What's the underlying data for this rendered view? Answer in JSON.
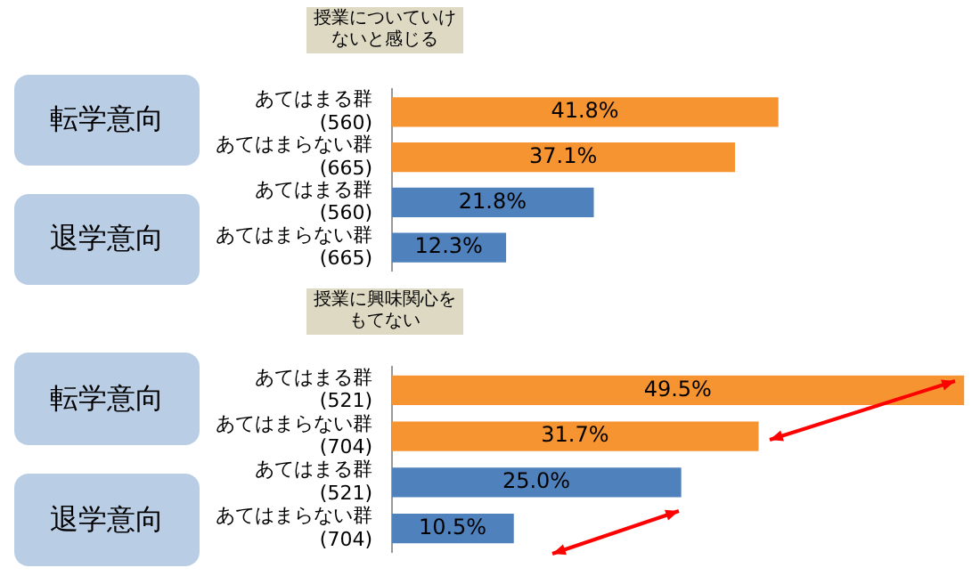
{
  "chart_data": [
    {
      "type": "bar",
      "orientation": "horizontal",
      "title": "授業についていけないと感じる",
      "categories": [
        "あてはまる群\n(560)",
        "あてはまらない群\n(665)",
        "あてはまる群\n(560)",
        "あてはまらない群\n(665)"
      ],
      "values": [
        41.8,
        37.1,
        21.8,
        12.3
      ],
      "colors": [
        "#f79432",
        "#f79432",
        "#4f81bd",
        "#4f81bd"
      ],
      "value_labels": [
        "41.8%",
        "37.1%",
        "21.8%",
        "12.3%"
      ],
      "annotations": [
        "転学意向",
        "退学意向"
      ],
      "legend": false,
      "tick_labels": "y"
    },
    {
      "type": "bar",
      "orientation": "horizontal",
      "title": "授業に興味関心をもてない",
      "categories": [
        "あてはまる群\n(521)",
        "あてはまらない群\n(704)",
        "あてはまる群\n(521)",
        "あてはまらない群\n(704)"
      ],
      "values": [
        49.5,
        31.7,
        25.0,
        10.5
      ],
      "colors": [
        "#f79432",
        "#f79432",
        "#4f81bd",
        "#4f81bd"
      ],
      "value_labels": [
        "49.5%",
        "31.7%",
        "25.0%",
        "10.5%"
      ],
      "annotations": [
        "転学意向",
        "退学意向"
      ],
      "legend": false,
      "tick_labels": "y"
    }
  ]
}
